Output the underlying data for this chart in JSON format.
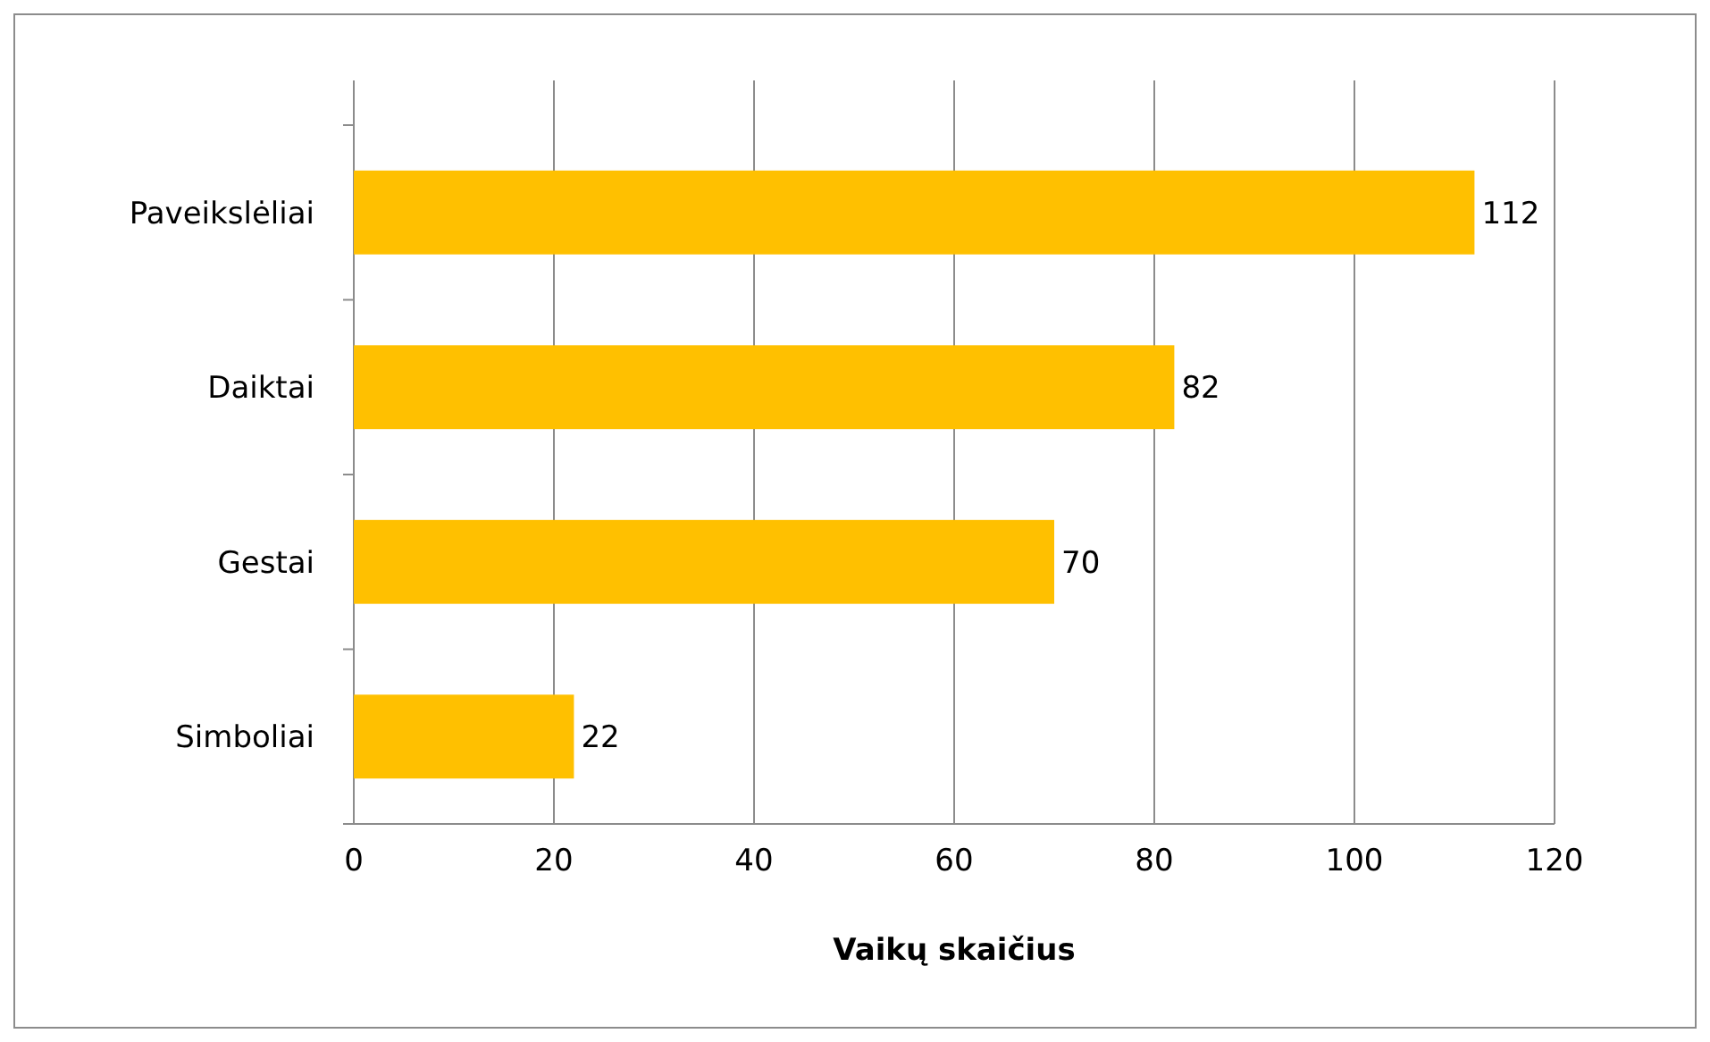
{
  "chart_data": {
    "type": "bar",
    "orientation": "horizontal",
    "xlabel": "Vaikų skaičius",
    "categories": [
      "Paveikslėliai",
      "Daiktai",
      "Gestai",
      "Simboliai"
    ],
    "values": [
      112,
      82,
      70,
      22
    ],
    "color": "#ffc000",
    "xlim": [
      0,
      120
    ],
    "xticks": [
      0,
      20,
      40,
      60,
      80,
      100,
      120
    ],
    "grid": "x",
    "data_labels": true
  }
}
